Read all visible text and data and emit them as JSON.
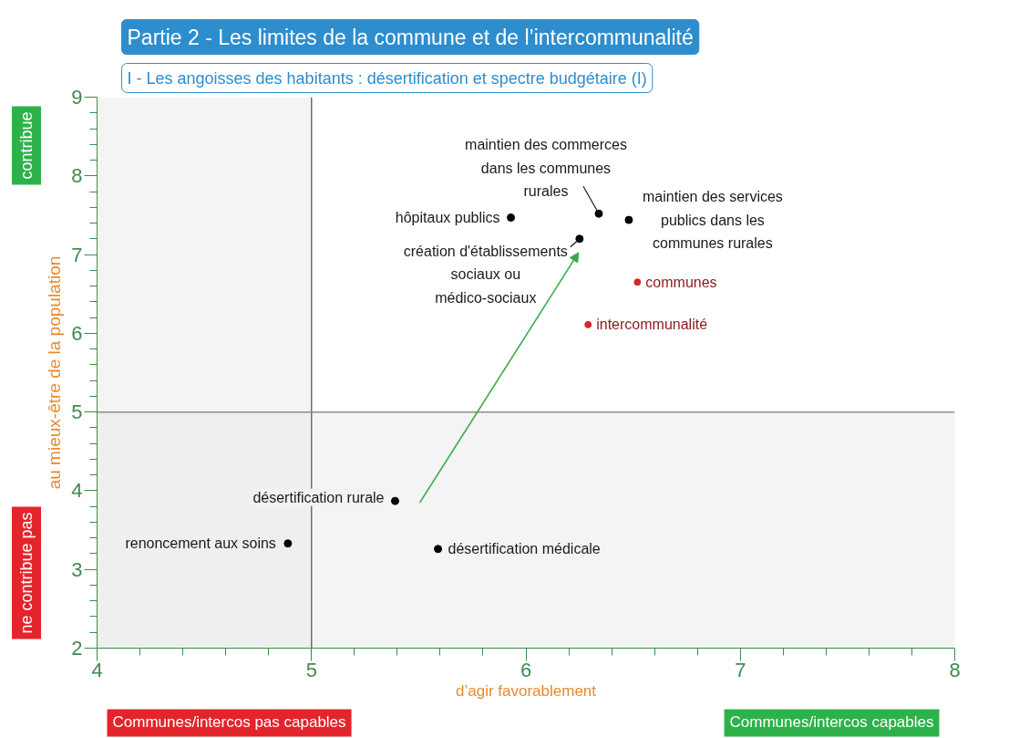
{
  "chart_data": {
    "type": "scatter",
    "title": "Partie 2 - Les limites de la commune et de l’intercommunalité",
    "subtitle": "I - Les angoisses des habitants : désertification et spectre budgétaire (I)",
    "xlabel": "d’agir favorablement",
    "ylabel": "au mieux-être de la population",
    "xlim": [
      4,
      8
    ],
    "xticks": [
      4,
      5,
      6,
      7,
      8
    ],
    "ylim": [
      2,
      9
    ],
    "yticks": [
      2,
      3,
      4,
      5,
      6,
      7,
      8,
      9
    ],
    "grid": false,
    "marker": "circle",
    "series": [
      {
        "color": "#000000",
        "x": [
          5.93,
          6.34,
          6.48,
          6.25
        ],
        "values": [
          7.47,
          7.52,
          7.44,
          7.2
        ]
      },
      {
        "color": "#000000",
        "x": [
          5.39,
          4.89,
          5.59
        ],
        "values": [
          3.87,
          3.33,
          3.26
        ]
      },
      {
        "name": "communes",
        "color": "#d7262b",
        "x": [
          6.52
        ],
        "values": [
          6.65
        ]
      },
      {
        "name": "intercommunalité",
        "color": "#d7262b",
        "x": [
          6.29
        ],
        "values": [
          6.11
        ]
      }
    ],
    "ref_lines": [
      {
        "axis": "x",
        "value": 5,
        "color": "#6e6e6e"
      },
      {
        "axis": "y",
        "value": 5,
        "color": "#8c8c8c"
      }
    ],
    "bands": [
      {
        "axis": "x",
        "from": 4,
        "to": 5,
        "color": "#ebebeb"
      },
      {
        "axis": "y",
        "from": 2,
        "to": 5,
        "color": "#ebebeb"
      }
    ],
    "annotations": [
      "contribue",
      "ne contribue pas",
      "Communes/intercos pas capables",
      "Communes/intercos capables",
      {
        "text": "hôpitaux publics",
        "x": 5.93,
        "y": 7.47
      },
      {
        "text": "maintien des commerces\ndans les communes\nrurales",
        "x": 6.34,
        "y": 7.52
      },
      {
        "text": "maintien des services\npublics dans les\ncommunes rurales",
        "x": 6.48,
        "y": 7.44
      },
      {
        "text": "création d'établissements\nsociaux ou\nmédico-sociaux",
        "x": 6.25,
        "y": 7.2
      },
      {
        "text": "désertification rurale",
        "x": 5.39,
        "y": 3.87
      },
      {
        "text": "renoncement aux soins",
        "x": 4.89,
        "y": 3.33
      },
      {
        "text": "désertification médicale",
        "x": 5.59,
        "y": 3.26
      }
    ]
  }
}
